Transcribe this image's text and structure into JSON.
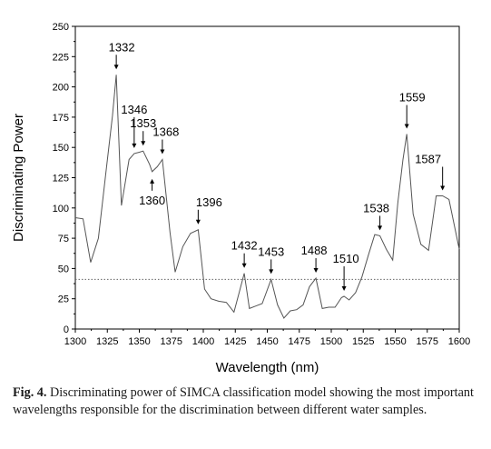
{
  "chart_data": {
    "type": "line",
    "xlabel": "Wavelength (nm)",
    "ylabel": "Discriminating Power",
    "xlim": [
      1300,
      1600
    ],
    "ylim": [
      0,
      250
    ],
    "xticks": [
      1300,
      1325,
      1350,
      1375,
      1400,
      1425,
      1450,
      1475,
      1500,
      1525,
      1550,
      1575,
      1600
    ],
    "yticks": [
      0,
      25,
      50,
      75,
      100,
      125,
      150,
      175,
      200,
      225,
      250
    ],
    "threshold": 41,
    "grid": false,
    "x": [
      1300,
      1306,
      1312,
      1318,
      1324,
      1329,
      1332,
      1336,
      1342,
      1346,
      1350,
      1353,
      1358,
      1360,
      1364,
      1368,
      1374,
      1378,
      1384,
      1390,
      1396,
      1401,
      1406,
      1412,
      1418,
      1424,
      1428,
      1432,
      1436,
      1441,
      1446,
      1453,
      1458,
      1463,
      1468,
      1473,
      1478,
      1483,
      1488,
      1493,
      1498,
      1503,
      1508,
      1510,
      1514,
      1519,
      1524,
      1529,
      1534,
      1538,
      1543,
      1548,
      1552,
      1556,
      1559,
      1564,
      1570,
      1576,
      1582,
      1587,
      1592,
      1600
    ],
    "y": [
      92,
      91,
      55,
      75,
      130,
      176,
      210,
      102,
      140,
      145,
      146,
      147,
      136,
      130,
      134,
      140,
      80,
      47,
      68,
      79,
      82,
      33,
      25,
      23,
      22,
      14,
      30,
      46,
      17,
      19,
      21,
      41,
      20,
      9,
      15,
      16,
      20,
      35,
      42,
      17,
      18,
      18,
      26,
      27,
      24,
      30,
      43,
      61,
      78,
      77,
      66,
      57,
      104,
      140,
      161,
      95,
      70,
      65,
      110,
      110,
      107,
      66
    ],
    "annotations": [
      {
        "label": "1332",
        "x": 1332,
        "direction": "down"
      },
      {
        "label": "1346",
        "x": 1346,
        "direction": "down"
      },
      {
        "label": "1353",
        "x": 1353,
        "direction": "down"
      },
      {
        "label": "1360",
        "x": 1360,
        "direction": "up"
      },
      {
        "label": "1368",
        "x": 1368,
        "direction": "down"
      },
      {
        "label": "1396",
        "x": 1396,
        "direction": "down"
      },
      {
        "label": "1432",
        "x": 1432,
        "direction": "down"
      },
      {
        "label": "1453",
        "x": 1453,
        "direction": "down"
      },
      {
        "label": "1488",
        "x": 1488,
        "direction": "down"
      },
      {
        "label": "1510",
        "x": 1510,
        "direction": "down"
      },
      {
        "label": "1538",
        "x": 1538,
        "direction": "down"
      },
      {
        "label": "1559",
        "x": 1559,
        "direction": "down"
      },
      {
        "label": "1587",
        "x": 1587,
        "direction": "down"
      }
    ]
  },
  "caption": {
    "prefix": "Fig. 4.",
    "text": "Discriminating power of SIMCA classification model showing the most important wavelengths responsible for the discrimination between different water samples."
  }
}
